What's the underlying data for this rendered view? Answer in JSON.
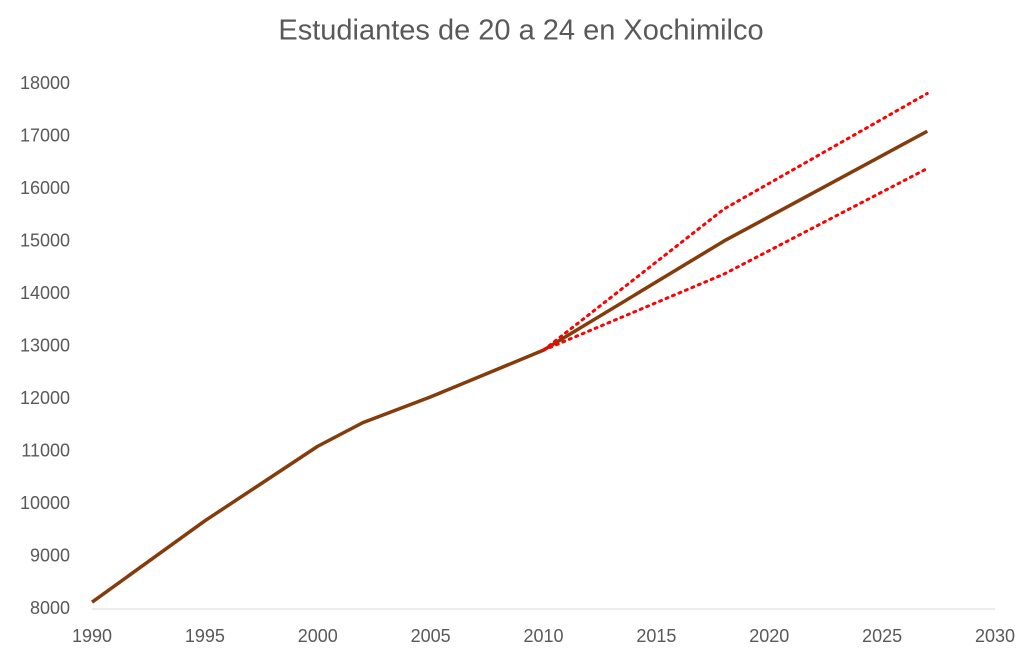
{
  "chart_data": {
    "type": "line",
    "title": "Estudiantes de 20 a 24 en Xochimilco",
    "x": [
      1990,
      1995,
      2000,
      2002,
      2005,
      2010,
      2018,
      2027
    ],
    "series": [
      {
        "color": "#843c0c",
        "style": "solid",
        "values": [
          8130,
          9680,
          11100,
          11550,
          12040,
          12930,
          15010,
          17100
        ]
      },
      {
        "color": "#ff0000",
        "style": "dotted",
        "values": [
          null,
          null,
          null,
          null,
          null,
          12930,
          15620,
          17820
        ]
      },
      {
        "color": "#ff0000",
        "style": "dotted",
        "values": [
          null,
          null,
          null,
          null,
          null,
          12930,
          14380,
          16390
        ]
      }
    ],
    "xlim": [
      1990,
      2030
    ],
    "xticks": [
      1990,
      1995,
      2000,
      2005,
      2010,
      2015,
      2020,
      2025,
      2030
    ],
    "ylim": [
      8000,
      18000
    ],
    "yticks": [
      8000,
      9000,
      10000,
      11000,
      12000,
      13000,
      14000,
      15000,
      16000,
      17000,
      18000
    ],
    "grid": false
  }
}
